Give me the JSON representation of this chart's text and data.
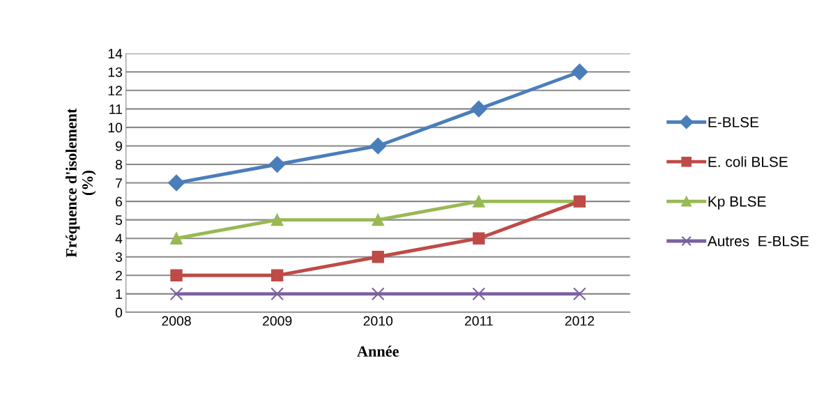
{
  "chart_data": {
    "type": "line",
    "xlabel": "Année",
    "ylabel": "Fréquence d'isolement\n(%)",
    "categories": [
      "2008",
      "2009",
      "2010",
      "2011",
      "2012"
    ],
    "series": [
      {
        "name": "E-BLSE",
        "color": "#4a7ebb",
        "marker": "diamond",
        "values": [
          7,
          8,
          9,
          11,
          13
        ]
      },
      {
        "name": "E. coli BLSE",
        "color": "#be4b48",
        "marker": "square",
        "values": [
          2,
          2,
          3,
          4,
          6
        ]
      },
      {
        "name": "Kp BLSE",
        "color": "#98b954",
        "marker": "triangle",
        "values": [
          4,
          5,
          5,
          6,
          6
        ]
      },
      {
        "name": "Autres  E-BLSE",
        "color": "#7d60a0",
        "marker": "cross",
        "values": [
          1,
          1,
          1,
          1,
          1
        ]
      }
    ],
    "ylim": [
      0,
      14
    ],
    "yticks": [
      0,
      1,
      2,
      3,
      4,
      5,
      6,
      7,
      8,
      9,
      10,
      11,
      12,
      13,
      14
    ],
    "grid": "y",
    "legend": "right",
    "line_style": "solid"
  }
}
